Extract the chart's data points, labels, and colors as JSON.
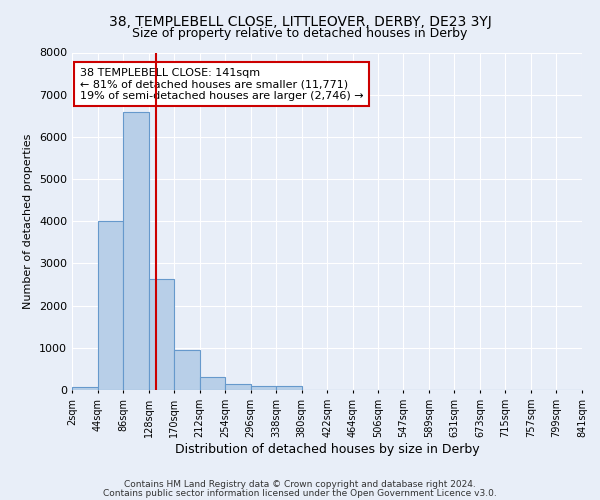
{
  "title_line1": "38, TEMPLEBELL CLOSE, LITTLEOVER, DERBY, DE23 3YJ",
  "title_line2": "Size of property relative to detached houses in Derby",
  "xlabel": "Distribution of detached houses by size in Derby",
  "ylabel": "Number of detached properties",
  "footer_line1": "Contains HM Land Registry data © Crown copyright and database right 2024.",
  "footer_line2": "Contains public sector information licensed under the Open Government Licence v3.0.",
  "annotation_line1": "38 TEMPLEBELL CLOSE: 141sqm",
  "annotation_line2": "← 81% of detached houses are smaller (11,771)",
  "annotation_line3": "19% of semi-detached houses are larger (2,746) →",
  "bin_edges": [
    2,
    44,
    86,
    128,
    170,
    212,
    254,
    296,
    338,
    380,
    422,
    464,
    506,
    547,
    589,
    631,
    673,
    715,
    757,
    799,
    841
  ],
  "bar_heights": [
    80,
    4000,
    6580,
    2620,
    960,
    310,
    135,
    100,
    90,
    0,
    0,
    0,
    0,
    0,
    0,
    0,
    0,
    0,
    0,
    0
  ],
  "bar_color": "#b8cfe8",
  "bar_edge_color": "#6699cc",
  "vline_color": "#cc0000",
  "vline_x": 141,
  "ylim": [
    0,
    8000
  ],
  "background_color": "#e8eef8",
  "grid_color": "#ffffff",
  "annotation_box_color": "#ffffff",
  "annotation_box_edge": "#cc0000",
  "yticks": [
    0,
    1000,
    2000,
    3000,
    4000,
    5000,
    6000,
    7000,
    8000
  ]
}
